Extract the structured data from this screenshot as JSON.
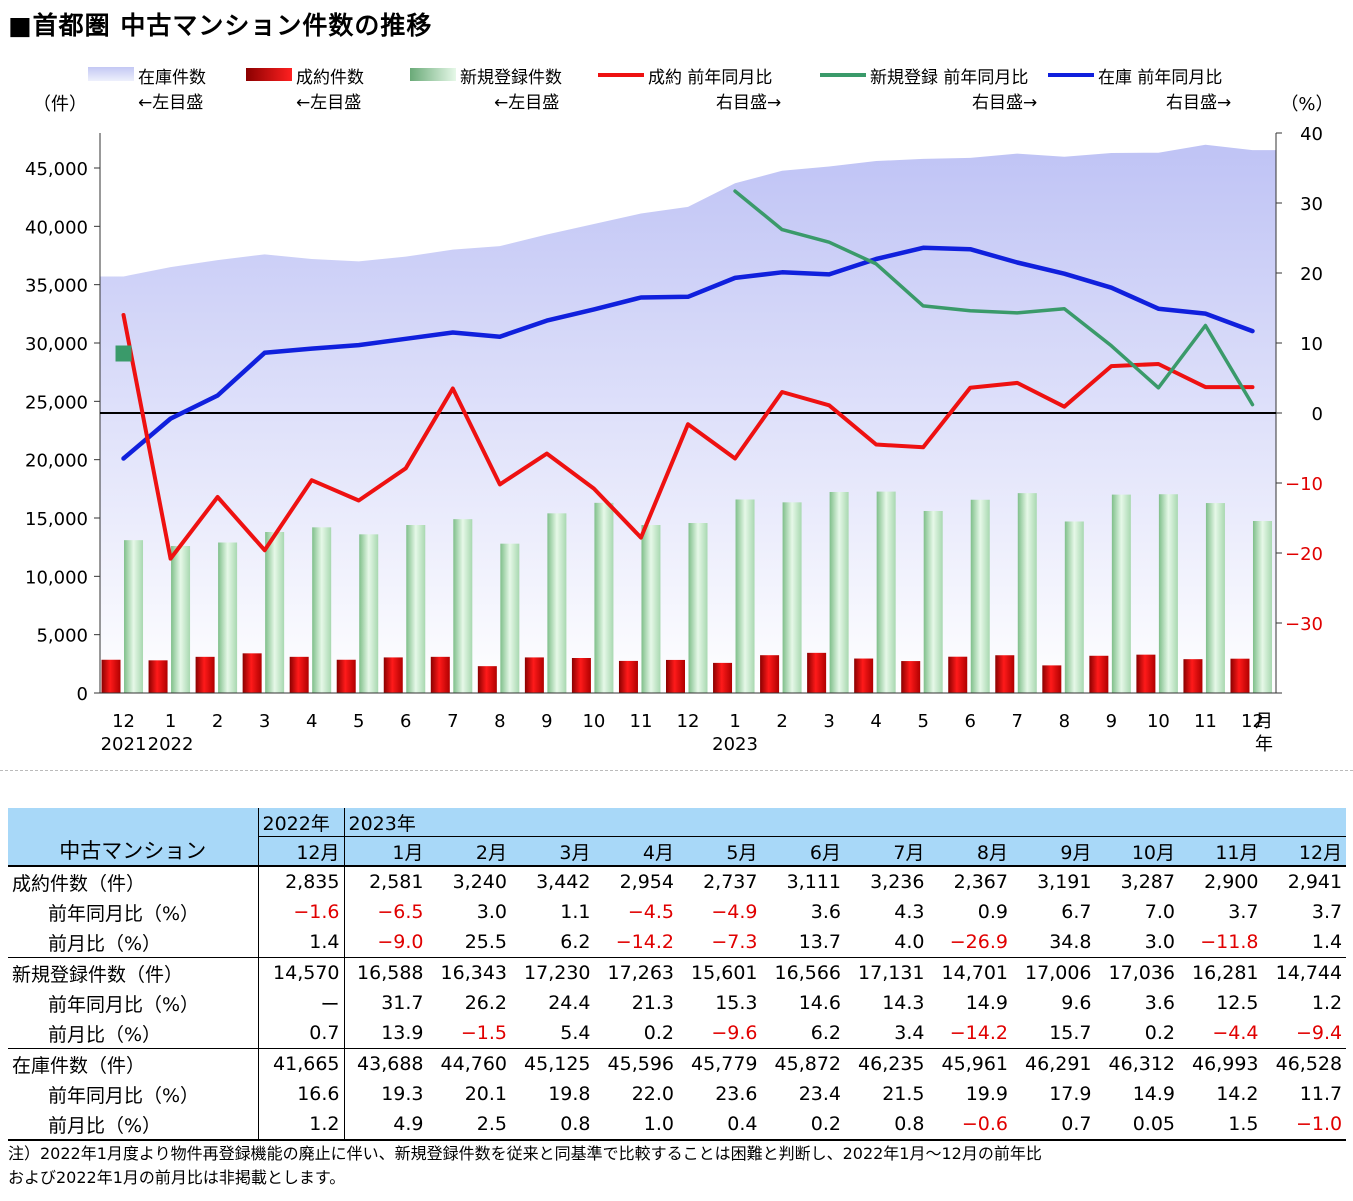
{
  "title": "■首都圏 中古マンション件数の推移",
  "chart_data": {
    "type": "bar+line+area",
    "left_axis_unit": "（件）",
    "right_axis_unit": "（%）",
    "left_ticks": [
      "0",
      "5,000",
      "10,000",
      "15,000",
      "20,000",
      "25,000",
      "30,000",
      "35,000",
      "40,000",
      "45,000"
    ],
    "right_ticks": [
      "−30",
      "−20",
      "−10",
      "0",
      "10",
      "20",
      "30",
      "40"
    ],
    "ylim_left": [
      0,
      48000
    ],
    "ylim_right": [
      -40,
      40
    ],
    "months": [
      "12",
      "1",
      "2",
      "3",
      "4",
      "5",
      "6",
      "7",
      "8",
      "9",
      "10",
      "11",
      "12",
      "1",
      "2",
      "3",
      "4",
      "5",
      "6",
      "7",
      "8",
      "9",
      "10",
      "11",
      "12"
    ],
    "year_labels": [
      {
        "index": 0,
        "text": "2021"
      },
      {
        "index": 1,
        "text": "2022"
      },
      {
        "index": 13,
        "text": "2023"
      }
    ],
    "month_unit": "月",
    "year_unit": "年",
    "legend": [
      {
        "key": "inventory",
        "line1": "在庫件数",
        "line2": "←左目盛",
        "color": "#c4c8f4"
      },
      {
        "key": "contracts",
        "line1": "成約件数",
        "line2": "←左目盛",
        "color": "#dd0000"
      },
      {
        "key": "new_listings",
        "line1": "新規登録件数",
        "line2": "←左目盛",
        "color": "#98d4a0"
      },
      {
        "key": "contracts_yoy",
        "line1": "成約 前年同月比",
        "line2": "右目盛→",
        "color": "#ee1111"
      },
      {
        "key": "new_listings_yoy",
        "line1": "新規登録 前年同月比",
        "line2": "右目盛→",
        "color": "#3a9a6a"
      },
      {
        "key": "inventory_yoy",
        "line1": "在庫 前年同月比",
        "line2": "右目盛→",
        "color": "#1020dd"
      }
    ],
    "series": {
      "inventory": [
        35700,
        36500,
        37100,
        37600,
        37200,
        37000,
        37400,
        38000,
        38300,
        39300,
        40200,
        41100,
        41665,
        43688,
        44760,
        45125,
        45596,
        45779,
        45872,
        46235,
        45961,
        46291,
        46312,
        46993,
        46528
      ],
      "contracts": [
        2850,
        2800,
        3100,
        3400,
        3100,
        2850,
        3050,
        3100,
        2300,
        3050,
        3000,
        2750,
        2835,
        2581,
        3240,
        3442,
        2954,
        2737,
        3111,
        3236,
        2367,
        3191,
        3287,
        2900,
        2941
      ],
      "new_listings": [
        13100,
        12600,
        12900,
        13800,
        14200,
        13600,
        14400,
        14900,
        12800,
        15400,
        16300,
        14400,
        14570,
        16588,
        16343,
        17230,
        17263,
        15601,
        16566,
        17131,
        14701,
        17006,
        17036,
        16281,
        14744
      ],
      "contracts_yoy": [
        14,
        -20.8,
        -12,
        -19.6,
        -9.6,
        -12.5,
        -7.9,
        3.5,
        -10.2,
        -5.8,
        -10.8,
        -17.8,
        -1.6,
        -6.5,
        3.0,
        1.1,
        -4.5,
        -4.9,
        3.6,
        4.3,
        0.9,
        6.7,
        7.0,
        3.7,
        3.7
      ],
      "new_listings_yoy": [
        null,
        null,
        null,
        null,
        null,
        null,
        null,
        null,
        null,
        null,
        null,
        null,
        null,
        31.7,
        26.2,
        24.4,
        21.3,
        15.3,
        14.6,
        14.3,
        14.9,
        9.6,
        3.6,
        12.5,
        1.2
      ],
      "inventory_yoy": [
        -6.5,
        -0.8,
        2.5,
        8.6,
        9.2,
        9.7,
        10.6,
        11.5,
        10.9,
        13.2,
        14.8,
        16.5,
        16.6,
        19.3,
        20.1,
        19.8,
        22.0,
        23.6,
        23.4,
        21.5,
        19.9,
        17.9,
        14.9,
        14.2,
        11.7
      ],
      "new_listings_yoy_start_marker": {
        "index": 0,
        "value": 8.5
      }
    }
  },
  "table": {
    "corner": "中古マンション",
    "year_prev": "2022年",
    "year_cur": "2023年",
    "month_headers": [
      "12月",
      "1月",
      "2月",
      "3月",
      "4月",
      "5月",
      "6月",
      "7月",
      "8月",
      "9月",
      "10月",
      "11月",
      "12月"
    ],
    "groups": [
      {
        "rows": [
          {
            "label": "成約件数（件）",
            "sub": false,
            "values": [
              "2,835",
              "2,581",
              "3,240",
              "3,442",
              "2,954",
              "2,737",
              "3,111",
              "3,236",
              "2,367",
              "3,191",
              "3,287",
              "2,900",
              "2,941"
            ]
          },
          {
            "label": "前年同月比（%）",
            "sub": true,
            "values": [
              "−1.6",
              "−6.5",
              "3.0",
              "1.1",
              "−4.5",
              "−4.9",
              "3.6",
              "4.3",
              "0.9",
              "6.7",
              "7.0",
              "3.7",
              "3.7"
            ]
          },
          {
            "label": "前月比（%）",
            "sub": true,
            "values": [
              "1.4",
              "−9.0",
              "25.5",
              "6.2",
              "−14.2",
              "−7.3",
              "13.7",
              "4.0",
              "−26.9",
              "34.8",
              "3.0",
              "−11.8",
              "1.4"
            ]
          }
        ]
      },
      {
        "rows": [
          {
            "label": "新規登録件数（件）",
            "sub": false,
            "values": [
              "14,570",
              "16,588",
              "16,343",
              "17,230",
              "17,263",
              "15,601",
              "16,566",
              "17,131",
              "14,701",
              "17,006",
              "17,036",
              "16,281",
              "14,744"
            ]
          },
          {
            "label": "前年同月比（%）",
            "sub": true,
            "values": [
              "ー",
              "31.7",
              "26.2",
              "24.4",
              "21.3",
              "15.3",
              "14.6",
              "14.3",
              "14.9",
              "9.6",
              "3.6",
              "12.5",
              "1.2"
            ]
          },
          {
            "label": "前月比（%）",
            "sub": true,
            "values": [
              "0.7",
              "13.9",
              "−1.5",
              "5.4",
              "0.2",
              "−9.6",
              "6.2",
              "3.4",
              "−14.2",
              "15.7",
              "0.2",
              "−4.4",
              "−9.4"
            ]
          }
        ]
      },
      {
        "rows": [
          {
            "label": "在庫件数（件）",
            "sub": false,
            "values": [
              "41,665",
              "43,688",
              "44,760",
              "45,125",
              "45,596",
              "45,779",
              "45,872",
              "46,235",
              "45,961",
              "46,291",
              "46,312",
              "46,993",
              "46,528"
            ]
          },
          {
            "label": "前年同月比（%）",
            "sub": true,
            "values": [
              "16.6",
              "19.3",
              "20.1",
              "19.8",
              "22.0",
              "23.6",
              "23.4",
              "21.5",
              "19.9",
              "17.9",
              "14.9",
              "14.2",
              "11.7"
            ]
          },
          {
            "label": "前月比（%）",
            "sub": true,
            "values": [
              "1.2",
              "4.9",
              "2.5",
              "0.8",
              "1.0",
              "0.4",
              "0.2",
              "0.8",
              "−0.6",
              "0.7",
              "0.05",
              "1.5",
              "−1.0"
            ]
          }
        ]
      }
    ]
  },
  "footnote": {
    "line1": "注）2022年1月度より物件再登録機能の廃止に伴い、新規登録件数を従来と同基準で比較することは困難と判断し、2022年1月〜12月の前年比",
    "line2": "および2022年1月の前月比は非掲載とします。"
  }
}
